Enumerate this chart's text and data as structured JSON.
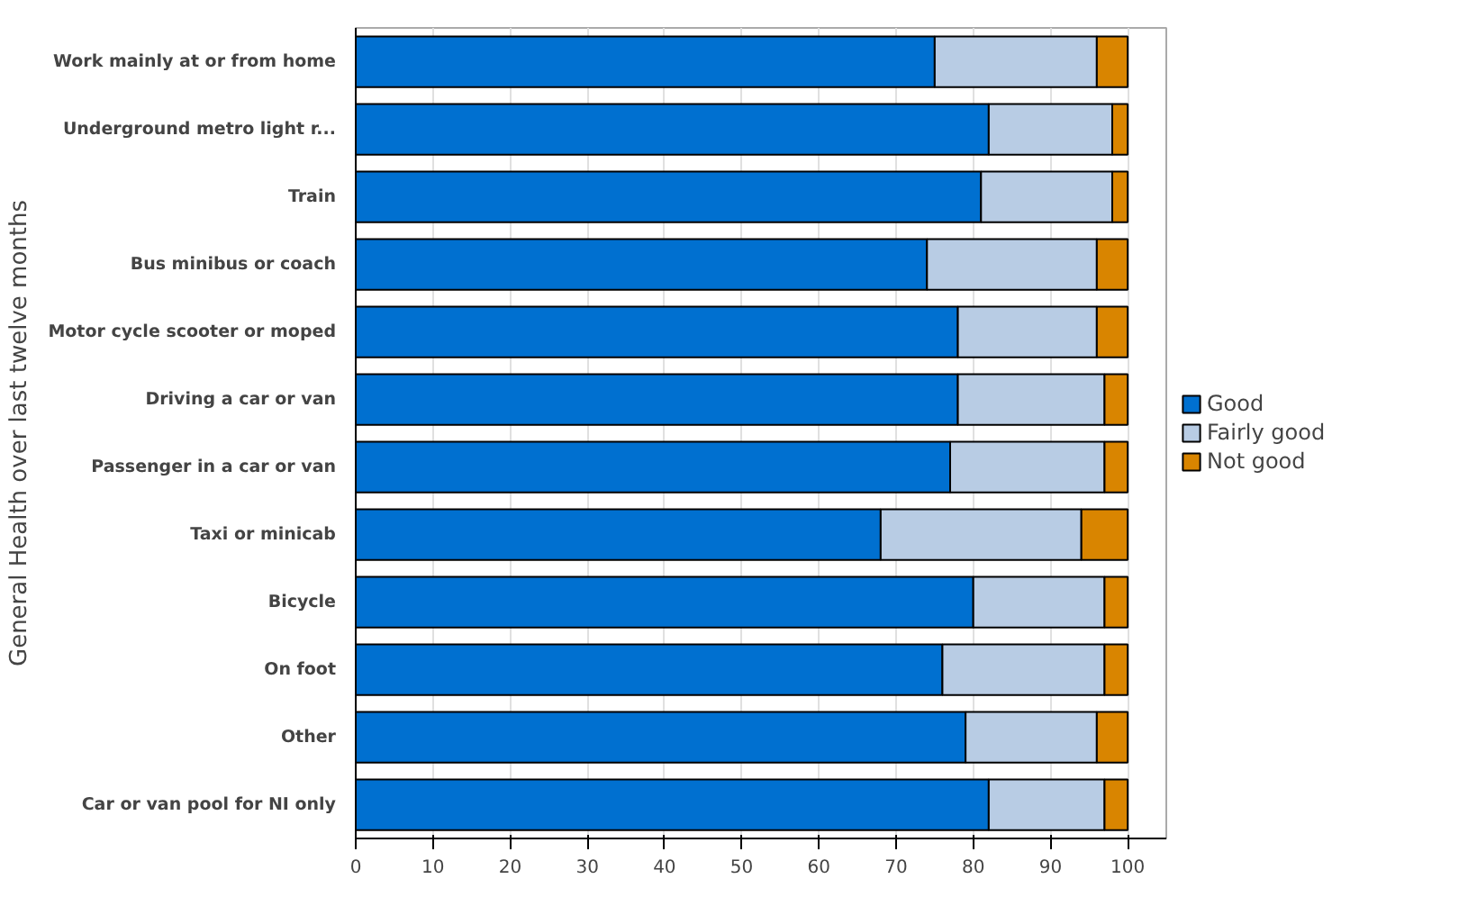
{
  "chart_data": {
    "type": "bar",
    "orientation": "horizontal",
    "stacked": true,
    "ylabel": "General Health over last twelve months",
    "categories": [
      "Work mainly at or from home",
      "Underground metro light r...",
      "Train",
      "Bus minibus or coach",
      "Motor cycle scooter or moped",
      "Driving a car or van",
      "Passenger in a car or van",
      "Taxi or minicab",
      "Bicycle",
      "On foot",
      "Other",
      "Car or van pool for NI only"
    ],
    "series": [
      {
        "name": "Good",
        "color": "#0070d0",
        "values": [
          75,
          82,
          81,
          74,
          78,
          78,
          77,
          68,
          80,
          76,
          79,
          82
        ]
      },
      {
        "name": "Fairly good",
        "color": "#b8cce4",
        "values": [
          21,
          16,
          17,
          22,
          18,
          19,
          20,
          26,
          17,
          21,
          17,
          15
        ]
      },
      {
        "name": "Not good",
        "color": "#d98500",
        "values": [
          4,
          2,
          2,
          4,
          4,
          3,
          3,
          6,
          3,
          3,
          4,
          3
        ]
      }
    ],
    "xlim": [
      0,
      105
    ],
    "xticks": [
      0,
      10,
      20,
      30,
      40,
      50,
      60,
      70,
      80,
      90,
      100
    ],
    "grid": "x",
    "legend": "right"
  }
}
